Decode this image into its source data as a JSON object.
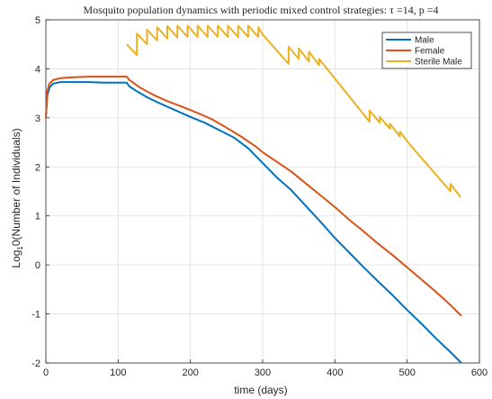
{
  "chart_data": {
    "type": "line",
    "title": "Mosquito population dynamics with periodic mixed control strategies: τ =14, p =4",
    "xlabel": "time (days)",
    "ylabel_main": "Log",
    "ylabel_sub": "1",
    "ylabel_rest": "0(Number of Individuals)",
    "xlim": [
      0,
      600
    ],
    "ylim": [
      -2,
      5
    ],
    "xticks": [
      0,
      100,
      200,
      300,
      400,
      500,
      600
    ],
    "yticks": [
      -2,
      -1,
      0,
      1,
      2,
      3,
      4,
      5
    ],
    "grid": true,
    "legend_position": "top-right",
    "series": [
      {
        "name": "Male",
        "color": "#0072BD",
        "x": [
          0,
          2,
          5,
          10,
          20,
          40,
          60,
          80,
          100,
          112,
          115,
          125,
          140,
          160,
          180,
          200,
          220,
          240,
          260,
          280,
          300,
          320,
          340,
          360,
          380,
          400,
          420,
          440,
          460,
          480,
          500,
          520,
          540,
          560,
          575
        ],
        "y": [
          3.0,
          3.45,
          3.62,
          3.7,
          3.73,
          3.73,
          3.73,
          3.72,
          3.72,
          3.72,
          3.65,
          3.55,
          3.42,
          3.28,
          3.15,
          3.02,
          2.9,
          2.75,
          2.6,
          2.38,
          2.08,
          1.78,
          1.52,
          1.2,
          0.88,
          0.55,
          0.25,
          -0.05,
          -0.34,
          -0.62,
          -0.92,
          -1.2,
          -1.5,
          -1.78,
          -2.0
        ]
      },
      {
        "name": "Female",
        "color": "#D95319",
        "x": [
          0,
          2,
          5,
          10,
          20,
          40,
          60,
          80,
          100,
          112,
          115,
          130,
          150,
          170,
          190,
          210,
          230,
          250,
          270,
          290,
          300,
          320,
          340,
          360,
          380,
          400,
          420,
          440,
          460,
          480,
          500,
          520,
          540,
          560,
          575
        ],
        "y": [
          3.0,
          3.55,
          3.7,
          3.77,
          3.81,
          3.83,
          3.84,
          3.84,
          3.84,
          3.84,
          3.78,
          3.62,
          3.46,
          3.33,
          3.22,
          3.1,
          2.97,
          2.8,
          2.62,
          2.42,
          2.3,
          2.1,
          1.9,
          1.66,
          1.42,
          1.18,
          0.92,
          0.68,
          0.43,
          0.2,
          -0.05,
          -0.3,
          -0.55,
          -0.82,
          -1.04
        ]
      },
      {
        "name": "Sterile Male",
        "color": "#EDB120",
        "x": [
          112,
          126,
          126,
          140,
          140,
          154,
          154,
          168,
          168,
          182,
          182,
          196,
          196,
          210,
          210,
          224,
          224,
          238,
          238,
          252,
          252,
          266,
          266,
          280,
          280,
          294,
          294,
          300,
          336,
          336,
          350,
          350,
          364,
          364,
          378,
          378,
          392,
          448,
          448,
          462,
          462,
          476,
          476,
          490,
          490,
          504,
          560,
          560,
          574
        ],
        "y": [
          4.5,
          4.28,
          4.72,
          4.5,
          4.8,
          4.58,
          4.85,
          4.62,
          4.87,
          4.64,
          4.88,
          4.65,
          4.88,
          4.65,
          4.88,
          4.65,
          4.88,
          4.65,
          4.88,
          4.65,
          4.88,
          4.65,
          4.88,
          4.65,
          4.88,
          4.65,
          4.85,
          4.7,
          4.1,
          4.45,
          4.2,
          4.42,
          4.15,
          4.35,
          4.08,
          4.2,
          3.95,
          2.92,
          3.15,
          2.9,
          3.02,
          2.78,
          2.88,
          2.62,
          2.72,
          2.45,
          1.5,
          1.65,
          1.38
        ]
      }
    ]
  }
}
